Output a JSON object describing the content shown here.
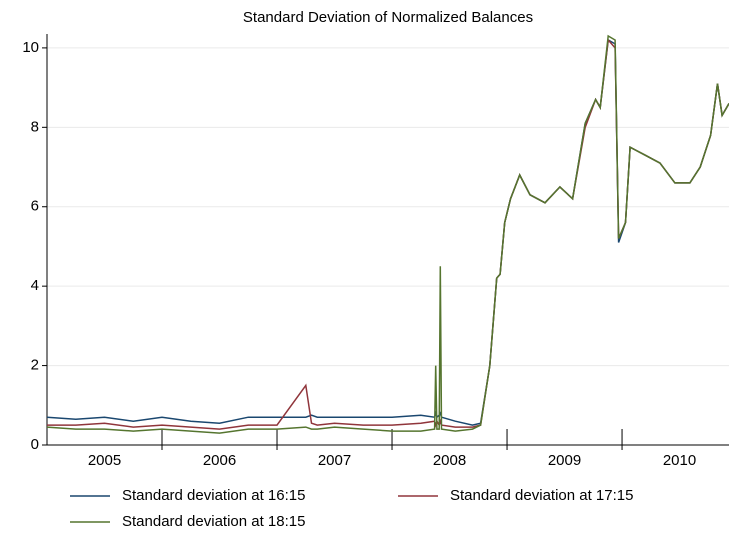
{
  "chart_data": {
    "type": "line",
    "title": "Standard Deviation of Normalized Balances",
    "x": [
      2005.0,
      2005.25,
      2005.5,
      2005.75,
      2006.0,
      2006.25,
      2006.5,
      2006.75,
      2007.0,
      2007.25,
      2007.3,
      2007.35,
      2007.5,
      2007.75,
      2008.0,
      2008.25,
      2008.37,
      2008.38,
      2008.39,
      2008.41,
      2008.42,
      2008.43,
      2008.55,
      2008.7,
      2008.77,
      2008.85,
      2008.91,
      2008.94,
      2008.98,
      2009.03,
      2009.11,
      2009.2,
      2009.33,
      2009.46,
      2009.57,
      2009.68,
      2009.77,
      2009.81,
      2009.88,
      2009.94,
      2009.97,
      2010.03,
      2010.07,
      2010.2,
      2010.33,
      2010.46,
      2010.59,
      2010.68,
      2010.77,
      2010.83,
      2010.87,
      2010.93
    ],
    "series": [
      {
        "name": "Standard deviation at 16:15",
        "color": "#1a476f",
        "values": [
          0.7,
          0.65,
          0.7,
          0.6,
          0.7,
          0.6,
          0.55,
          0.7,
          0.7,
          0.7,
          0.75,
          0.7,
          0.7,
          0.7,
          0.7,
          0.75,
          0.7,
          0.8,
          0.7,
          0.75,
          0.8,
          0.7,
          0.6,
          0.5,
          0.55,
          2.0,
          4.2,
          4.3,
          5.6,
          6.2,
          6.8,
          6.3,
          6.1,
          6.5,
          6.2,
          8.1,
          8.7,
          8.5,
          10.2,
          10.1,
          5.1,
          5.6,
          7.5,
          7.3,
          7.1,
          6.6,
          6.6,
          7.0,
          7.8,
          9.1,
          8.3,
          8.6
        ]
      },
      {
        "name": "Standard deviation at 17:15",
        "color": "#90353b",
        "values": [
          0.5,
          0.5,
          0.55,
          0.45,
          0.5,
          0.45,
          0.4,
          0.5,
          0.5,
          1.5,
          0.55,
          0.5,
          0.55,
          0.5,
          0.5,
          0.55,
          0.6,
          0.5,
          0.6,
          0.5,
          0.6,
          0.5,
          0.45,
          0.45,
          0.5,
          2.0,
          4.2,
          4.3,
          5.6,
          6.2,
          6.8,
          6.3,
          6.1,
          6.5,
          6.2,
          8.0,
          8.7,
          8.5,
          10.2,
          10.0,
          5.2,
          5.6,
          7.5,
          7.3,
          7.1,
          6.6,
          6.6,
          7.0,
          7.8,
          9.1,
          8.3,
          8.6
        ]
      },
      {
        "name": "Standard deviation at 18:15",
        "color": "#55752f",
        "values": [
          0.45,
          0.4,
          0.4,
          0.35,
          0.4,
          0.35,
          0.3,
          0.4,
          0.4,
          0.45,
          0.4,
          0.4,
          0.45,
          0.4,
          0.35,
          0.35,
          0.4,
          2.0,
          0.4,
          0.4,
          4.5,
          0.4,
          0.35,
          0.4,
          0.5,
          2.0,
          4.2,
          4.3,
          5.6,
          6.2,
          6.8,
          6.3,
          6.1,
          6.5,
          6.2,
          8.1,
          8.7,
          8.5,
          10.3,
          10.2,
          5.2,
          5.6,
          7.5,
          7.3,
          7.1,
          6.6,
          6.6,
          7.0,
          7.8,
          9.1,
          8.3,
          8.6
        ]
      }
    ],
    "xlim": [
      2005.0,
      2010.93
    ],
    "xticks": [
      {
        "value": 2005.5,
        "label": "2005"
      },
      {
        "value": 2006.5,
        "label": "2006"
      },
      {
        "value": 2007.5,
        "label": "2007"
      },
      {
        "value": 2008.5,
        "label": "2008"
      },
      {
        "value": 2009.5,
        "label": "2009"
      },
      {
        "value": 2010.5,
        "label": "2010"
      }
    ],
    "xticks_major": [
      2006,
      2007,
      2008,
      2009,
      2010
    ],
    "ylim": [
      0,
      10.35
    ],
    "yticks": [
      0,
      2,
      4,
      6,
      8,
      10
    ],
    "grid": true,
    "legend": "bottom"
  }
}
